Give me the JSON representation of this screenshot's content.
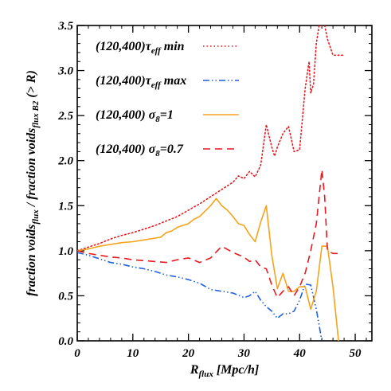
{
  "chart_data": {
    "type": "line",
    "xlabel": {
      "main": "R",
      "sub": "flux",
      "rest": " [Mpc/h]"
    },
    "ylabel": {
      "p1": "fraction voids",
      "s1": "flux",
      "p2": " / fraction voids",
      "s2": "flux B2",
      "p3": " (> R)"
    },
    "xlim": [
      0,
      53
    ],
    "ylim": [
      0,
      3.5
    ],
    "x_ticks": [
      "0",
      "10",
      "20",
      "30",
      "40",
      "50"
    ],
    "x_tick_values": [
      0,
      10,
      20,
      30,
      40,
      50
    ],
    "y_ticks": [
      "0.0",
      "0.5",
      "1.0",
      "1.5",
      "2.0",
      "2.5",
      "3.0",
      "3.5"
    ],
    "y_tick_values": [
      0,
      0.5,
      1.0,
      1.5,
      2.0,
      2.5,
      3.0,
      3.5
    ],
    "grid": false,
    "legend_position": "top-left",
    "series": [
      {
        "name": "(120,400)τ_eff min",
        "legend": {
          "pre": "(120,400)τ",
          "sub": "eff",
          "post": " min"
        },
        "color": "#e8191f",
        "dash": "dotted",
        "points": [
          [
            0,
            1.0
          ],
          [
            2,
            1.04
          ],
          [
            4,
            1.08
          ],
          [
            6,
            1.13
          ],
          [
            8,
            1.17
          ],
          [
            10,
            1.2
          ],
          [
            12,
            1.24
          ],
          [
            14,
            1.28
          ],
          [
            16,
            1.33
          ],
          [
            18,
            1.38
          ],
          [
            20,
            1.45
          ],
          [
            22,
            1.52
          ],
          [
            24,
            1.6
          ],
          [
            26,
            1.68
          ],
          [
            28,
            1.76
          ],
          [
            29,
            1.83
          ],
          [
            30,
            1.8
          ],
          [
            31,
            1.88
          ],
          [
            32,
            1.82
          ],
          [
            33,
            1.95
          ],
          [
            34,
            2.4
          ],
          [
            35,
            2.15
          ],
          [
            35.5,
            2.05
          ],
          [
            36,
            2.15
          ],
          [
            37,
            2.3
          ],
          [
            38,
            2.38
          ],
          [
            39,
            2.1
          ],
          [
            40,
            2.12
          ],
          [
            41,
            2.8
          ],
          [
            41.7,
            3.1
          ],
          [
            42,
            2.75
          ],
          [
            42.5,
            2.85
          ],
          [
            43,
            3.3
          ],
          [
            43.5,
            3.5
          ],
          [
            44.5,
            3.5
          ],
          [
            45,
            3.35
          ],
          [
            46,
            3.17
          ],
          [
            48,
            3.17
          ]
        ]
      },
      {
        "name": "(120,400)τ_eff max",
        "legend": {
          "pre": "(120,400)τ",
          "sub": "eff",
          "post": " max"
        },
        "color": "#1f5fe0",
        "dash": "dashdotdot",
        "points": [
          [
            0,
            0.98
          ],
          [
            2,
            0.95
          ],
          [
            4,
            0.91
          ],
          [
            6,
            0.87
          ],
          [
            8,
            0.85
          ],
          [
            10,
            0.82
          ],
          [
            12,
            0.8
          ],
          [
            14,
            0.77
          ],
          [
            16,
            0.73
          ],
          [
            18,
            0.71
          ],
          [
            20,
            0.68
          ],
          [
            22,
            0.64
          ],
          [
            24,
            0.57
          ],
          [
            26,
            0.55
          ],
          [
            28,
            0.53
          ],
          [
            30,
            0.48
          ],
          [
            31,
            0.5
          ],
          [
            32,
            0.55
          ],
          [
            33,
            0.45
          ],
          [
            34,
            0.38
          ],
          [
            35,
            0.33
          ],
          [
            36,
            0.25
          ],
          [
            37,
            0.3
          ],
          [
            38,
            0.3
          ],
          [
            39,
            0.33
          ],
          [
            40,
            0.45
          ],
          [
            41,
            0.63
          ],
          [
            42,
            0.62
          ],
          [
            43,
            0.35
          ],
          [
            44,
            0.0
          ]
        ]
      },
      {
        "name": "(120,400) σ_8=1",
        "legend": {
          "pre": "(120,400) σ",
          "sub": "8",
          "post": "=1"
        },
        "color": "#f5a31a",
        "dash": "solid",
        "points": [
          [
            0,
            1.0
          ],
          [
            2,
            1.02
          ],
          [
            4,
            1.05
          ],
          [
            6,
            1.07
          ],
          [
            8,
            1.09
          ],
          [
            10,
            1.1
          ],
          [
            12,
            1.12
          ],
          [
            14,
            1.14
          ],
          [
            15,
            1.15
          ],
          [
            16,
            1.2
          ],
          [
            17,
            1.22
          ],
          [
            18,
            1.26
          ],
          [
            20,
            1.3
          ],
          [
            21,
            1.35
          ],
          [
            22,
            1.38
          ],
          [
            23,
            1.44
          ],
          [
            24,
            1.5
          ],
          [
            25,
            1.58
          ],
          [
            26,
            1.5
          ],
          [
            27,
            1.45
          ],
          [
            28,
            1.38
          ],
          [
            29,
            1.3
          ],
          [
            30,
            1.28
          ],
          [
            31,
            1.18
          ],
          [
            32,
            1.1
          ],
          [
            33,
            1.32
          ],
          [
            34,
            1.5
          ],
          [
            35,
            0.95
          ],
          [
            36,
            0.58
          ],
          [
            37,
            0.75
          ],
          [
            38,
            0.55
          ],
          [
            39,
            0.55
          ],
          [
            40,
            0.6
          ],
          [
            41,
            0.6
          ],
          [
            42,
            0.35
          ],
          [
            43,
            0.55
          ],
          [
            44,
            1.05
          ],
          [
            45,
            1.05
          ],
          [
            46,
            0.6
          ],
          [
            47,
            0.0
          ]
        ]
      },
      {
        "name": "(120,400) σ_8=0.7",
        "legend": {
          "pre": "(120,400) σ",
          "sub": "8",
          "post": "=0.7"
        },
        "color": "#e8191f",
        "dash": "dashed",
        "points": [
          [
            0,
            1.0
          ],
          [
            2,
            0.97
          ],
          [
            4,
            0.95
          ],
          [
            6,
            0.93
          ],
          [
            8,
            0.92
          ],
          [
            10,
            0.9
          ],
          [
            12,
            0.89
          ],
          [
            14,
            0.88
          ],
          [
            16,
            0.87
          ],
          [
            18,
            0.9
          ],
          [
            20,
            0.92
          ],
          [
            22,
            0.87
          ],
          [
            24,
            0.92
          ],
          [
            26,
            1.05
          ],
          [
            28,
            0.98
          ],
          [
            30,
            0.93
          ],
          [
            31,
            0.88
          ],
          [
            32,
            0.9
          ],
          [
            33,
            0.82
          ],
          [
            34,
            0.8
          ],
          [
            35,
            0.62
          ],
          [
            36,
            0.48
          ],
          [
            37,
            0.55
          ],
          [
            38,
            0.6
          ],
          [
            39,
            0.5
          ],
          [
            40,
            0.6
          ],
          [
            41,
            0.75
          ],
          [
            42,
            1.0
          ],
          [
            43,
            1.3
          ],
          [
            44,
            1.9
          ],
          [
            44.5,
            1.6
          ],
          [
            45,
            1.0
          ],
          [
            46,
            0.97
          ],
          [
            47,
            0.97
          ]
        ]
      }
    ]
  }
}
